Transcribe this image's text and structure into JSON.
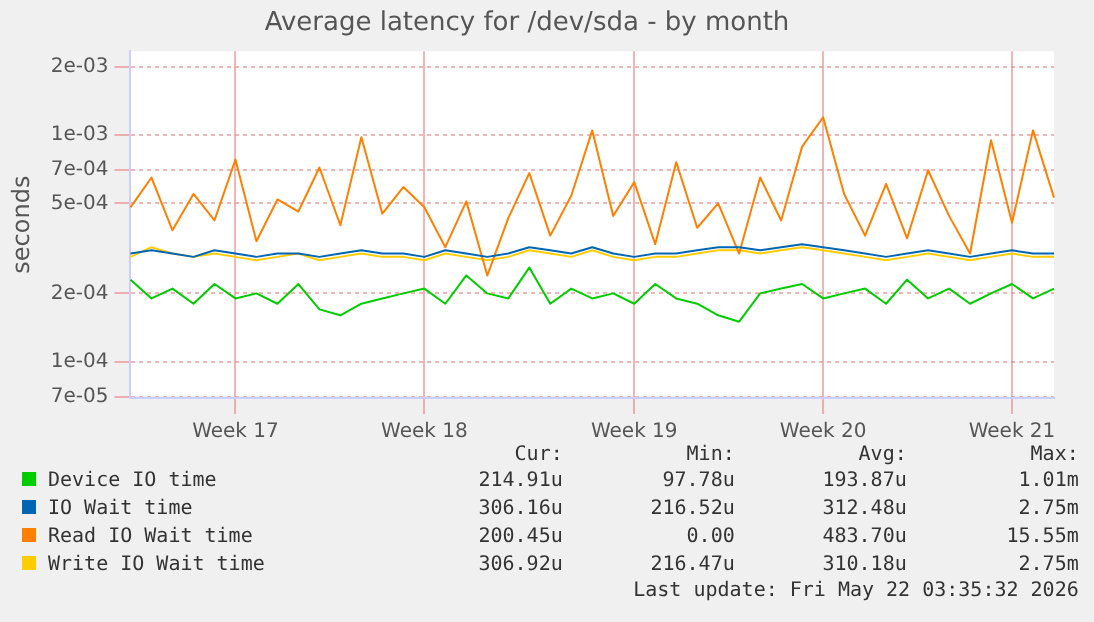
{
  "chart_data": {
    "type": "line",
    "title": "Average latency for /dev/sda - by month",
    "ylabel": "seconds",
    "log": "y",
    "grid": true,
    "legend": "bottom",
    "marker": "none",
    "line_style": "solid",
    "categories": [
      null,
      null,
      null,
      null,
      null,
      "Week 17",
      null,
      null,
      null,
      null,
      null,
      null,
      null,
      null,
      "Week 18",
      null,
      null,
      null,
      null,
      null,
      null,
      null,
      null,
      null,
      "Week 19",
      null,
      null,
      null,
      null,
      null,
      null,
      null,
      null,
      "Week 20",
      null,
      null,
      null,
      null,
      null,
      null,
      null,
      null,
      "Week 21",
      null,
      null
    ],
    "ylim": [
      6.9e-05,
      0.00235
    ],
    "yticks": [
      {
        "value": 7e-05,
        "label": "7e-05"
      },
      {
        "value": 0.0001,
        "label": "1e-04"
      },
      {
        "value": 0.0002,
        "label": "2e-04"
      },
      {
        "value": 0.0005,
        "label": "5e-04"
      },
      {
        "value": 0.0007,
        "label": "7e-04"
      },
      {
        "value": 0.001,
        "label": "1e-03"
      },
      {
        "value": 0.002,
        "label": "2e-03"
      }
    ],
    "series": [
      {
        "name": "Device IO time",
        "color": "#00cc00",
        "values": [
          0.00023,
          0.00019,
          0.00021,
          0.00018,
          0.00022,
          0.00019,
          0.0002,
          0.00018,
          0.00022,
          0.00017,
          0.00016,
          0.00018,
          0.00019,
          0.0002,
          0.00021,
          0.00018,
          0.00024,
          0.0002,
          0.00019,
          0.00026,
          0.00018,
          0.00021,
          0.00019,
          0.0002,
          0.00018,
          0.00022,
          0.00019,
          0.00018,
          0.00016,
          0.00015,
          0.0002,
          0.00021,
          0.00022,
          0.00019,
          0.0002,
          0.00021,
          0.00018,
          0.00023,
          0.00019,
          0.00021,
          0.00018,
          0.0002,
          0.00022,
          0.00019,
          0.00021
        ]
      },
      {
        "name": "IO Wait time",
        "color": "#0066b3",
        "values": [
          0.0003,
          0.00031,
          0.0003,
          0.00029,
          0.00031,
          0.0003,
          0.00029,
          0.0003,
          0.0003,
          0.00029,
          0.0003,
          0.00031,
          0.0003,
          0.0003,
          0.00029,
          0.00031,
          0.0003,
          0.00029,
          0.0003,
          0.00032,
          0.00031,
          0.0003,
          0.00032,
          0.0003,
          0.00029,
          0.0003,
          0.0003,
          0.00031,
          0.00032,
          0.00032,
          0.00031,
          0.00032,
          0.00033,
          0.00032,
          0.00031,
          0.0003,
          0.00029,
          0.0003,
          0.00031,
          0.0003,
          0.00029,
          0.0003,
          0.00031,
          0.0003,
          0.0003
        ]
      },
      {
        "name": "Read IO Wait time",
        "color": "#ff8000",
        "values": [
          0.00048,
          0.00065,
          0.00038,
          0.00055,
          0.00042,
          0.00078,
          0.00034,
          0.00052,
          0.00046,
          0.00072,
          0.0004,
          0.00098,
          0.00045,
          0.00059,
          0.00048,
          0.00032,
          0.00051,
          0.00024,
          0.00043,
          0.00068,
          0.00036,
          0.00054,
          0.00105,
          0.00044,
          0.00062,
          0.00033,
          0.00076,
          0.00039,
          0.0005,
          0.0003,
          0.00065,
          0.00042,
          0.00089,
          0.0012,
          0.00055,
          0.00036,
          0.00061,
          0.00035,
          0.0007,
          0.00044,
          0.0003,
          0.00095,
          0.00041,
          0.00105,
          0.00053
        ]
      },
      {
        "name": "Write IO Wait time",
        "color": "#ffcc00",
        "values": [
          0.00029,
          0.00032,
          0.0003,
          0.00029,
          0.0003,
          0.00029,
          0.00028,
          0.00029,
          0.0003,
          0.00028,
          0.00029,
          0.0003,
          0.00029,
          0.00029,
          0.00028,
          0.0003,
          0.00029,
          0.00028,
          0.00029,
          0.00031,
          0.0003,
          0.00029,
          0.00031,
          0.00029,
          0.00028,
          0.00029,
          0.00029,
          0.0003,
          0.00031,
          0.00031,
          0.0003,
          0.00031,
          0.00032,
          0.00031,
          0.0003,
          0.00029,
          0.00028,
          0.00029,
          0.0003,
          0.00029,
          0.00028,
          0.00029,
          0.0003,
          0.00029,
          0.00029
        ]
      }
    ],
    "annotations": [
      "Cur:",
      "Min:",
      "Avg:",
      "Max:",
      "214.91u",
      "97.78u",
      "193.87u",
      "1.01m",
      "306.16u",
      "216.52u",
      "312.48u",
      "2.75m",
      "200.45u",
      "0.00",
      "483.70u",
      "15.55m",
      "306.92u",
      "216.47u",
      "310.18u",
      "2.75m",
      "Last update: Fri May 22 03:35:32 2026"
    ]
  }
}
